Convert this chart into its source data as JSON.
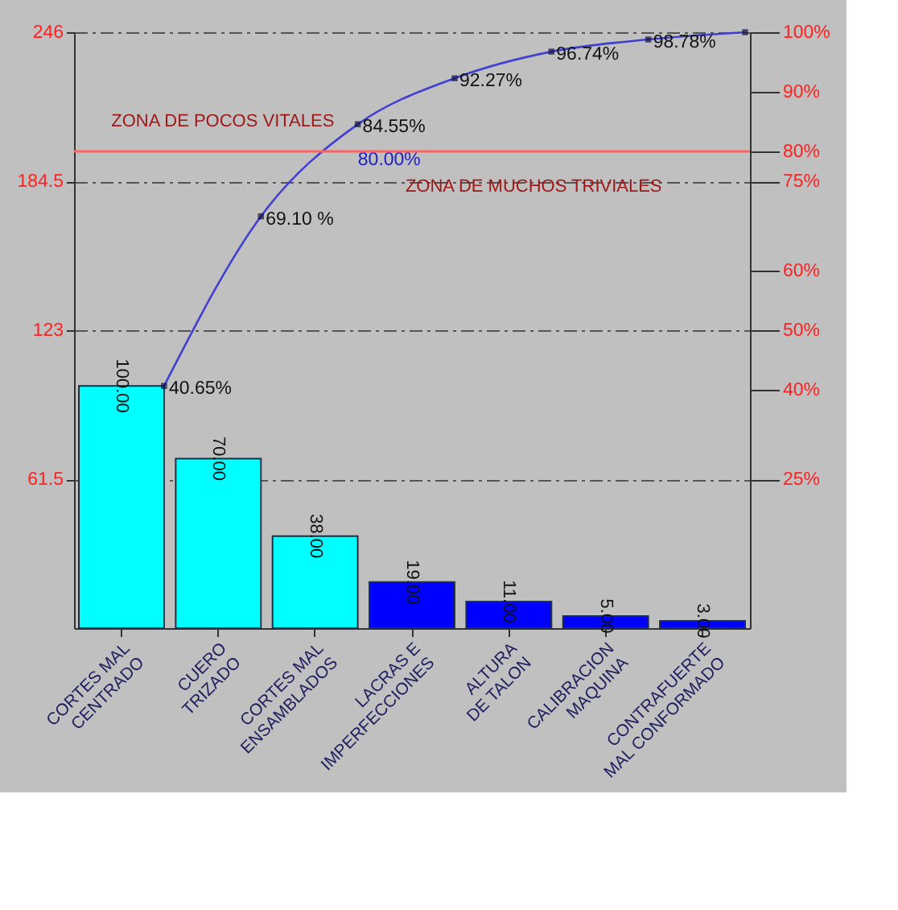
{
  "chart_data": {
    "type": "bar",
    "categories": [
      "CORTES MAL CENTRADO",
      "CUERO TRIZADO",
      "CORTES MAL ENSAMBLADOS",
      "LACRAS E IMPERFECCIONES",
      "ALTURA DE TALON",
      "CALIBRACION MAQUINA",
      "CONTRAFUERTE MAL CONFORMADO"
    ],
    "series": [
      {
        "colors": [
          "#00ffff",
          "#00ffff",
          "#00ffff",
          "#0000ff",
          "#0000ff",
          "#0000ff",
          "#0000ff"
        ],
        "values": [
          100,
          70,
          38,
          19,
          11,
          5,
          3
        ],
        "value_labels": [
          "100.00",
          "70.00",
          "38.00",
          "19.00",
          "11.00",
          "5.00",
          "3.00"
        ]
      },
      {
        "type": "line",
        "axis": "y2",
        "color": "#4040d0",
        "values": [
          40.65,
          69.1,
          84.55,
          92.27,
          96.74,
          98.78,
          100
        ],
        "value_labels": [
          "40.65%",
          "69.10 %",
          "84.55%",
          "92.27%",
          "96.74%",
          "98.78%",
          null
        ]
      }
    ],
    "marker": "square",
    "ylim": [
      0,
      246
    ],
    "yticks": [
      61.5,
      123,
      184.5,
      246
    ],
    "y2lim": [
      0,
      100
    ],
    "y2ticks": [
      {
        "value": 25,
        "label": "25%"
      },
      {
        "value": 40,
        "label": "40%"
      },
      {
        "value": 50,
        "label": "50%"
      },
      {
        "value": 60,
        "label": "60%"
      },
      {
        "value": 75,
        "label": "75%"
      },
      {
        "value": 80,
        "label": "80%"
      },
      {
        "value": 90,
        "label": "90%"
      },
      {
        "value": 100,
        "label": "100%"
      }
    ],
    "grid": "y",
    "ref_lines": [
      {
        "axis": "y2",
        "value": 80,
        "label": null,
        "color": "#ff6060"
      }
    ],
    "annotations": [
      "ZONA DE POCOS VITALES",
      "ZONA DE MUCHOS TRIVIALES",
      "80.00%"
    ]
  }
}
